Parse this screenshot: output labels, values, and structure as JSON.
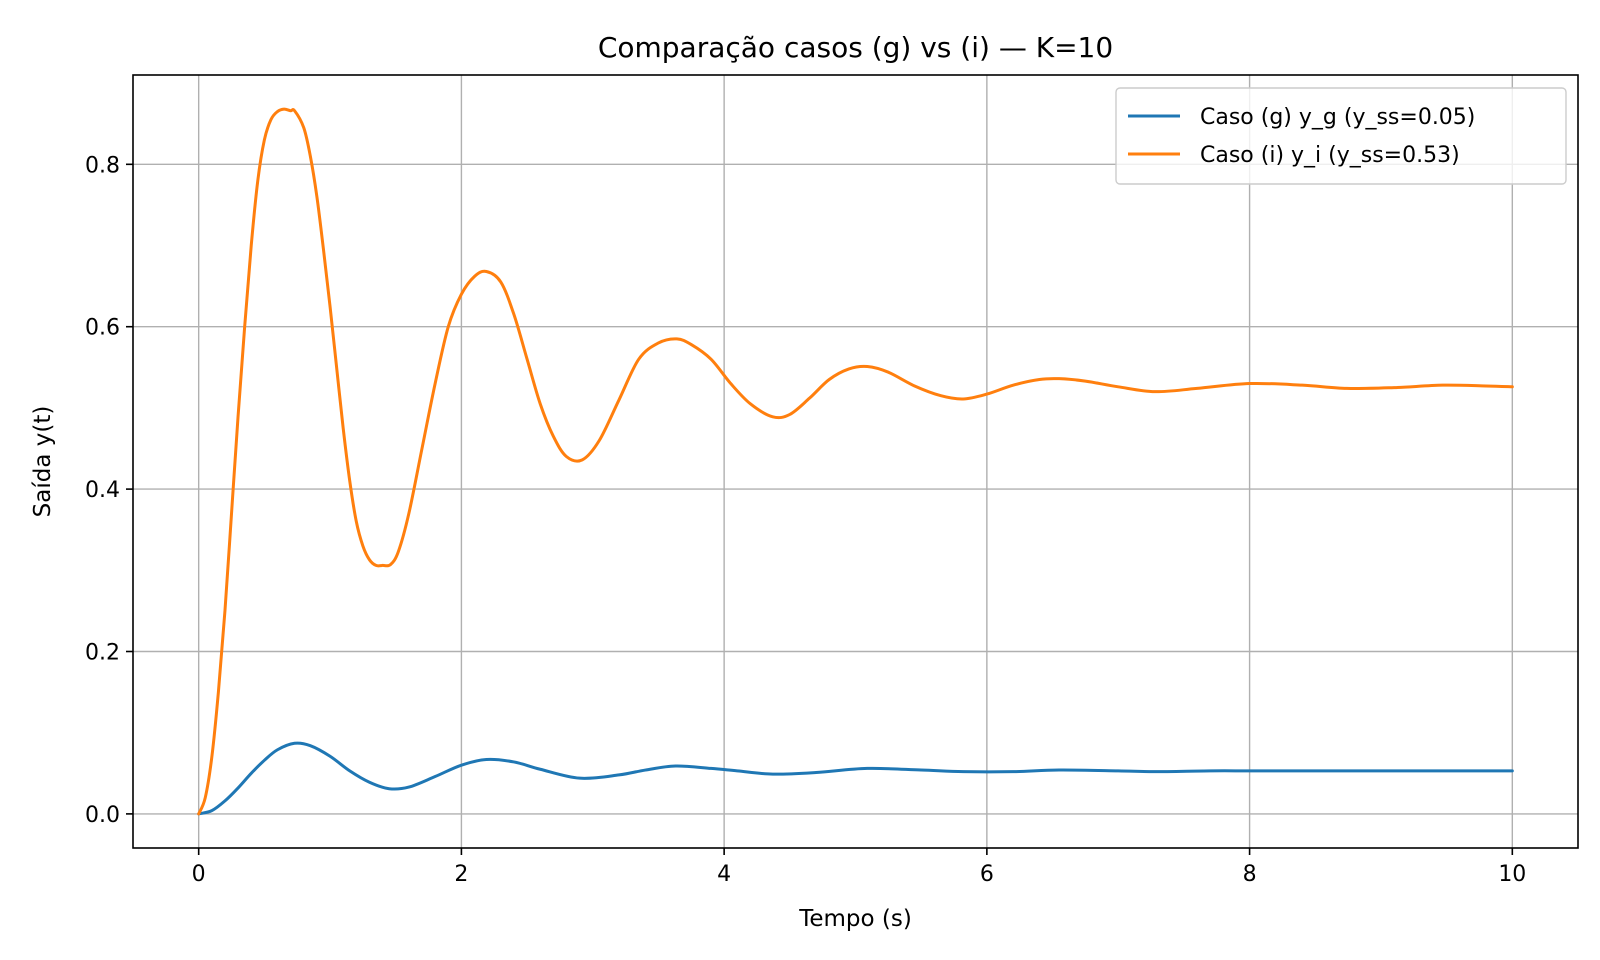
{
  "chart_data": {
    "type": "line",
    "title": "Comparação casos (g) vs (i) — K=10",
    "xlabel": "Tempo (s)",
    "ylabel": "Saída y(t)",
    "xlim": [
      -0.5,
      10.5
    ],
    "ylim": [
      -0.042,
      0.91
    ],
    "xticks": [
      0,
      2,
      4,
      6,
      8,
      10
    ],
    "xtick_labels": [
      "0",
      "2",
      "4",
      "6",
      "8",
      "10"
    ],
    "yticks": [
      0.0,
      0.2,
      0.4,
      0.6,
      0.8
    ],
    "ytick_labels": [
      "0.0",
      "0.2",
      "0.4",
      "0.6",
      "0.8"
    ],
    "grid": true,
    "legend_position": "top-right",
    "series": [
      {
        "name": "Caso (g) y_g (y_ss=0.05)",
        "color": "#1f77b4",
        "x": [
          0,
          0.1,
          0.2,
          0.3,
          0.4,
          0.5,
          0.6,
          0.73,
          0.85,
          1.0,
          1.15,
          1.3,
          1.45,
          1.6,
          1.8,
          2.0,
          2.19,
          2.4,
          2.6,
          2.9,
          3.2,
          3.4,
          3.63,
          3.9,
          4.1,
          4.37,
          4.7,
          5.09,
          5.5,
          5.82,
          6.2,
          6.55,
          7.0,
          7.28,
          7.7,
          8.0,
          8.4,
          8.74,
          9.2,
          9.47,
          10.0
        ],
        "y": [
          0.0,
          0.004,
          0.016,
          0.032,
          0.05,
          0.066,
          0.079,
          0.087,
          0.084,
          0.071,
          0.053,
          0.039,
          0.031,
          0.033,
          0.046,
          0.06,
          0.067,
          0.064,
          0.055,
          0.044,
          0.048,
          0.054,
          0.059,
          0.056,
          0.053,
          0.049,
          0.051,
          0.056,
          0.054,
          0.052,
          0.052,
          0.054,
          0.053,
          0.052,
          0.053,
          0.053,
          0.053,
          0.053,
          0.053,
          0.053,
          0.053
        ]
      },
      {
        "name": "Caso (i) y_i (y_ss=0.53)",
        "color": "#ff7f0e",
        "x": [
          0,
          0.05,
          0.1,
          0.15,
          0.2,
          0.25,
          0.3,
          0.35,
          0.4,
          0.45,
          0.5,
          0.55,
          0.6,
          0.65,
          0.7,
          0.73,
          0.8,
          0.85,
          0.9,
          0.95,
          1.0,
          1.05,
          1.1,
          1.15,
          1.2,
          1.25,
          1.3,
          1.35,
          1.4,
          1.46,
          1.52,
          1.6,
          1.7,
          1.8,
          1.9,
          2.0,
          2.1,
          2.19,
          2.3,
          2.4,
          2.5,
          2.6,
          2.7,
          2.8,
          2.92,
          3.05,
          3.2,
          3.35,
          3.5,
          3.64,
          3.75,
          3.9,
          4.05,
          4.2,
          4.37,
          4.5,
          4.65,
          4.8,
          4.95,
          5.09,
          5.25,
          5.45,
          5.65,
          5.82,
          6.0,
          6.2,
          6.4,
          6.55,
          6.75,
          7.0,
          7.28,
          7.6,
          8.0,
          8.4,
          8.74,
          9.1,
          9.47,
          9.8,
          10.0
        ],
        "y": [
          0.0,
          0.02,
          0.07,
          0.15,
          0.25,
          0.37,
          0.49,
          0.6,
          0.7,
          0.78,
          0.83,
          0.855,
          0.865,
          0.868,
          0.866,
          0.866,
          0.845,
          0.81,
          0.76,
          0.695,
          0.625,
          0.55,
          0.475,
          0.41,
          0.36,
          0.33,
          0.313,
          0.306,
          0.306,
          0.307,
          0.323,
          0.37,
          0.45,
          0.53,
          0.6,
          0.64,
          0.662,
          0.668,
          0.655,
          0.615,
          0.56,
          0.505,
          0.465,
          0.44,
          0.436,
          0.46,
          0.51,
          0.56,
          0.58,
          0.585,
          0.578,
          0.56,
          0.53,
          0.505,
          0.489,
          0.492,
          0.512,
          0.535,
          0.548,
          0.551,
          0.544,
          0.527,
          0.515,
          0.511,
          0.517,
          0.528,
          0.535,
          0.536,
          0.533,
          0.526,
          0.52,
          0.524,
          0.53,
          0.528,
          0.524,
          0.525,
          0.528,
          0.527,
          0.526
        ]
      }
    ]
  }
}
